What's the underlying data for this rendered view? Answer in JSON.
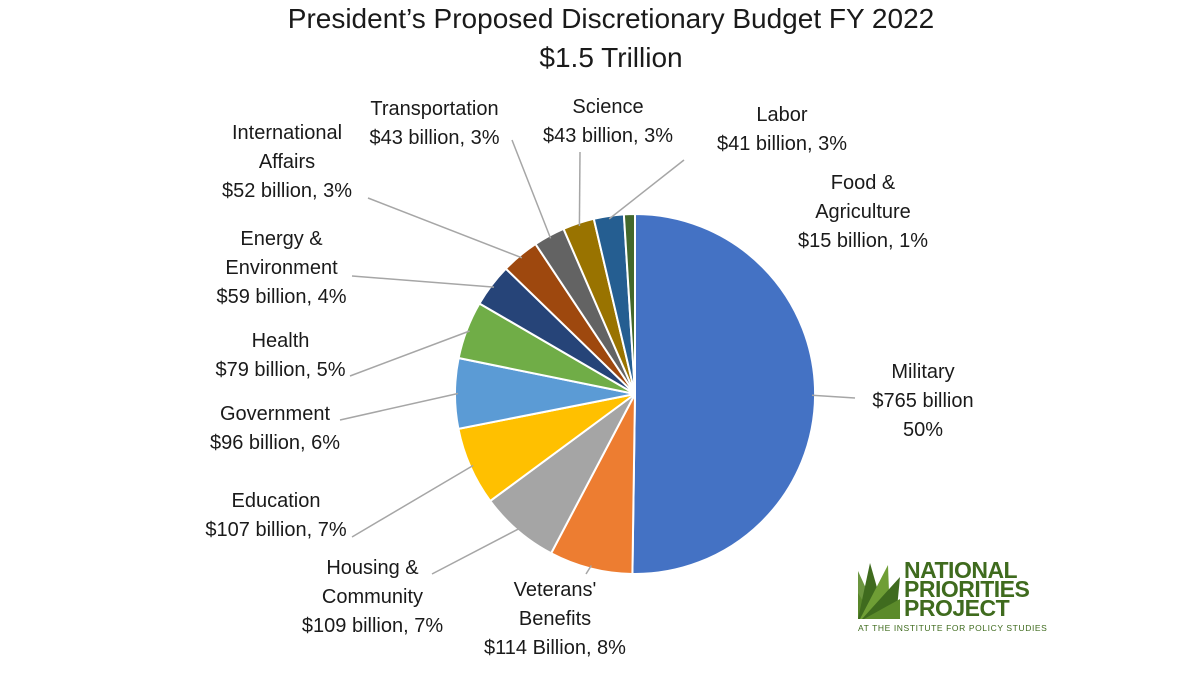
{
  "chart_data": {
    "type": "pie",
    "title": "President’s Proposed Discretionary Budget FY 2022",
    "subtitle": "$1.5 Trillion",
    "units": "billion USD",
    "slices": [
      {
        "key": "military",
        "name": "Military",
        "value": 765,
        "percent": 50,
        "color": "#4472C4",
        "label_lines": [
          "Military",
          "$765 billion",
          "50%"
        ]
      },
      {
        "key": "veterans",
        "name": "Veterans' Benefits",
        "value": 114,
        "percent": 8,
        "color": "#ED7D31",
        "label_lines": [
          "Veterans'",
          "Benefits",
          "$114 Billion, 8%"
        ]
      },
      {
        "key": "housing",
        "name": "Housing & Community",
        "value": 109,
        "percent": 7,
        "color": "#A5A5A5",
        "label_lines": [
          "Housing &",
          "Community",
          "$109 billion, 7%"
        ]
      },
      {
        "key": "education",
        "name": "Education",
        "value": 107,
        "percent": 7,
        "color": "#FFC000",
        "label_lines": [
          "Education",
          "$107 billion, 7%"
        ]
      },
      {
        "key": "government",
        "name": "Government",
        "value": 96,
        "percent": 6,
        "color": "#5B9BD5",
        "label_lines": [
          "Government",
          "$96 billion, 6%"
        ]
      },
      {
        "key": "health",
        "name": "Health",
        "value": 79,
        "percent": 5,
        "color": "#70AD47",
        "label_lines": [
          "Health",
          "$79 billion, 5%"
        ]
      },
      {
        "key": "energy",
        "name": "Energy & Environment",
        "value": 59,
        "percent": 4,
        "color": "#264478",
        "label_lines": [
          "Energy &",
          "Environment",
          "$59 billion, 4%"
        ]
      },
      {
        "key": "international",
        "name": "International Affairs",
        "value": 52,
        "percent": 3,
        "color": "#9E480E",
        "label_lines": [
          "International",
          "Affairs",
          "$52 billion, 3%"
        ]
      },
      {
        "key": "transportation",
        "name": "Transportation",
        "value": 43,
        "percent": 3,
        "color": "#636363",
        "label_lines": [
          "Transportation",
          "$43 billion, 3%"
        ]
      },
      {
        "key": "science",
        "name": "Science",
        "value": 43,
        "percent": 3,
        "color": "#997300",
        "label_lines": [
          "Science",
          "$43 billion, 3%"
        ]
      },
      {
        "key": "labor",
        "name": "Labor",
        "value": 41,
        "percent": 3,
        "color": "#255E91",
        "label_lines": [
          "Labor",
          "$41 billion, 3%"
        ]
      },
      {
        "key": "food",
        "name": "Food & Agriculture",
        "value": 15,
        "percent": 1,
        "color": "#43682B",
        "label_lines": [
          "Food &",
          "Agriculture",
          "$15 billion, 1%"
        ]
      }
    ]
  },
  "logo": {
    "name_lines": [
      "NATIONAL",
      "PRIORITIES",
      "PROJECT"
    ],
    "tagline": "AT THE INSTITUTE FOR POLICY STUDIES",
    "color": "#3F6B1E"
  }
}
